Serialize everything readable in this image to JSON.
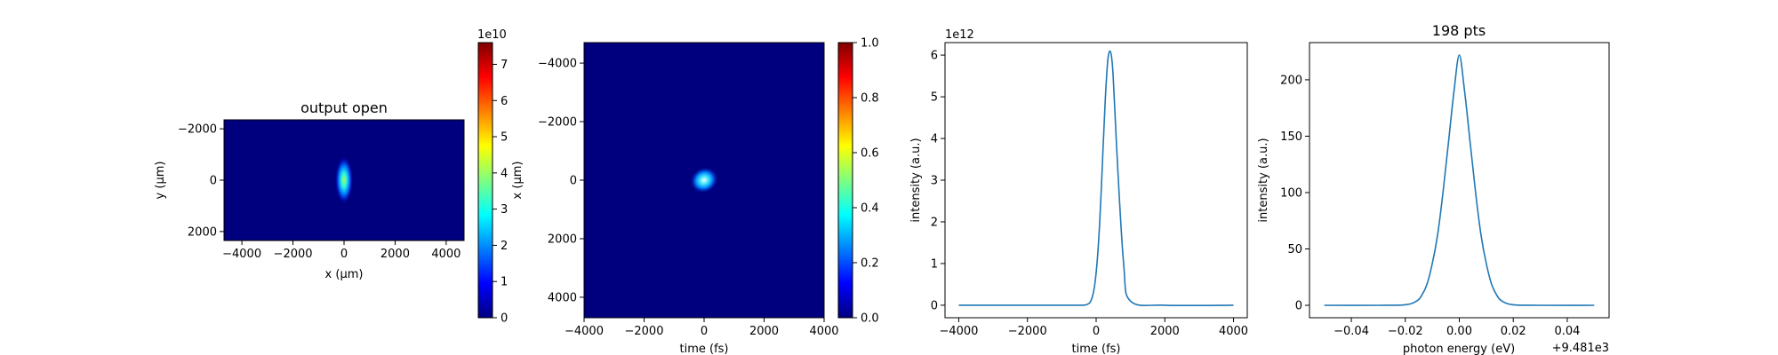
{
  "chart_data": [
    {
      "type": "heatmap",
      "title": "output open",
      "xlabel": "x (μm)",
      "ylabel": "y (μm)",
      "xlim": [
        -4700,
        4700
      ],
      "ylim": [
        -2350,
        2350
      ],
      "y_inverted": true,
      "xticks": [
        -4000,
        -2000,
        0,
        2000,
        4000
      ],
      "yticks": [
        -2000,
        0,
        2000
      ],
      "colormap": "jet",
      "spot": {
        "center_x": 0,
        "center_y": 0,
        "sigma_x": 160,
        "sigma_y": 420
      },
      "colorbar": {
        "min": 0,
        "max": 7.6,
        "ticks": [
          0,
          1,
          2,
          3,
          4,
          5,
          6,
          7
        ],
        "offset_label": "1e10"
      }
    },
    {
      "type": "heatmap",
      "title": "",
      "xlabel": "time (fs)",
      "ylabel": "x (μm)",
      "xlim": [
        -4000,
        4000
      ],
      "ylim": [
        -4700,
        4700
      ],
      "y_inverted": true,
      "xticks": [
        -4000,
        -2000,
        0,
        2000,
        4000
      ],
      "yticks": [
        -4000,
        -2000,
        0,
        2000,
        4000
      ],
      "colormap": "jet",
      "spot": {
        "center_x": 0,
        "center_y": 0,
        "sigma_x": 220,
        "sigma_y": 200
      },
      "colorbar": {
        "min": 0,
        "max": 1.0,
        "ticks": [
          "0.0",
          "0.2",
          "0.4",
          "0.6",
          "0.8",
          "1.0"
        ],
        "offset_label": ""
      }
    },
    {
      "type": "line",
      "title": "",
      "xlabel": "time (fs)",
      "ylabel": "intensity (a.u.)",
      "offset_label": "1e12",
      "xlim": [
        -4400,
        4400
      ],
      "ylim": [
        -0.3,
        6.3
      ],
      "xticks": [
        -4000,
        -2000,
        0,
        2000,
        4000
      ],
      "yticks": [
        0,
        1,
        2,
        3,
        4,
        5,
        6
      ],
      "color": "#1f77b4",
      "series": [
        {
          "x": [
            -4000,
            -2000,
            -800,
            -400,
            -300,
            -200,
            -150,
            -100,
            -50,
            0,
            50,
            100,
            150,
            200,
            250,
            300,
            350,
            400,
            450,
            500,
            600,
            800,
            1000,
            2000,
            4000
          ],
          "y": [
            0,
            0,
            0,
            0.001,
            0.008,
            0.05,
            0.11,
            0.23,
            0.44,
            0.78,
            1.26,
            1.94,
            2.78,
            3.73,
            4.66,
            5.43,
            5.95,
            6.1,
            5.95,
            5.43,
            3.73,
            1.0,
            0.1,
            0,
            0
          ]
        }
      ]
    },
    {
      "type": "line",
      "title": "198 pts",
      "xlabel": "photon energy (eV)",
      "ylabel": "intensity (a.u.)",
      "offset_label": "+9.481e3",
      "xlim": [
        -0.0555,
        0.0555
      ],
      "ylim": [
        -11,
        233
      ],
      "xticks": [
        "−0.04",
        "−0.02",
        "0.00",
        "0.02",
        "0.04"
      ],
      "xtick_values": [
        -0.04,
        -0.02,
        0,
        0.02,
        0.04
      ],
      "yticks": [
        0,
        50,
        100,
        150,
        200
      ],
      "color": "#1f77b4",
      "series": [
        {
          "x": [
            -0.05,
            -0.03,
            -0.02,
            -0.016,
            -0.014,
            -0.012,
            -0.01,
            -0.008,
            -0.006,
            -0.004,
            -0.002,
            0,
            0.002,
            0.004,
            0.006,
            0.008,
            0.01,
            0.012,
            0.014,
            0.016,
            0.02,
            0.03,
            0.05
          ],
          "y": [
            0,
            0,
            0.5,
            3.5,
            8.5,
            18.5,
            37,
            63,
            101,
            145,
            189,
            222,
            189,
            145,
            101,
            63,
            37,
            18.5,
            8.5,
            3.5,
            0.5,
            0,
            0
          ]
        }
      ]
    }
  ]
}
